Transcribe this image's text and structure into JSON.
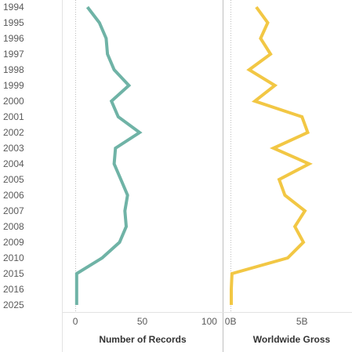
{
  "chart_data": {
    "type": "line",
    "orientation": "vertical-series",
    "categories": [
      "1994",
      "1995",
      "1996",
      "1997",
      "1998",
      "1999",
      "2000",
      "2001",
      "2002",
      "2003",
      "2004",
      "2005",
      "2006",
      "2007",
      "2008",
      "2009",
      "2010",
      "2015",
      "2016",
      "2025"
    ],
    "series": [
      {
        "name": "Number of Records",
        "color": "#6fb3a6",
        "values": [
          9,
          18,
          23,
          24,
          29,
          40,
          27,
          32,
          48,
          30,
          29,
          34,
          39,
          37,
          38,
          33,
          20,
          1,
          1,
          1
        ],
        "xlim": [
          -10,
          110
        ],
        "ticks": [
          "0",
          "50",
          "100"
        ],
        "tick_values": [
          0,
          50,
          100
        ],
        "axis_title": "Number of Records"
      },
      {
        "name": "Worldwide Gross",
        "color": "#f2c744",
        "values": [
          1.8,
          2.6,
          2.1,
          2.8,
          1.3,
          3.1,
          1.7,
          5.0,
          5.4,
          3.0,
          5.5,
          3.4,
          3.8,
          5.2,
          4.5,
          5.1,
          4.0,
          0.1,
          0.05,
          0.05
        ],
        "xlim": [
          -0.5,
          8.5
        ],
        "ticks": [
          "0B",
          "5B"
        ],
        "tick_values": [
          0,
          5
        ],
        "axis_title": "Worldwide Gross"
      }
    ]
  }
}
